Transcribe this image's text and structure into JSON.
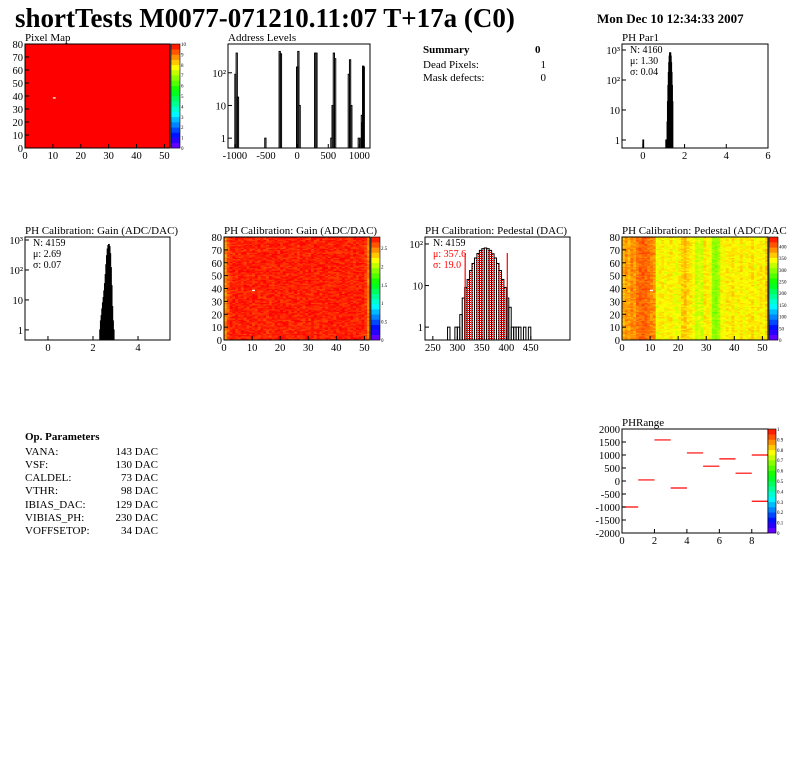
{
  "header": {
    "title": "shortTests M0077-071210.11:07 T+17a (C0)",
    "date": "Mon Dec 10 12:34:33 2007"
  },
  "summary": {
    "title": "Summary",
    "value": "0",
    "rows": [
      {
        "label": "Dead Pixels:",
        "value": "1"
      },
      {
        "label": "Mask defects:",
        "value": "0"
      }
    ]
  },
  "op_params": {
    "title": "Op. Parameters",
    "rows": [
      {
        "label": "VANA:",
        "value": "143 DAC"
      },
      {
        "label": "VSF:",
        "value": "130 DAC"
      },
      {
        "label": "CALDEL:",
        "value": "73 DAC"
      },
      {
        "label": "VTHR:",
        "value": "98 DAC"
      },
      {
        "label": "IBIAS_DAC:",
        "value": "129 DAC"
      },
      {
        "label": "VIBIAS_PH:",
        "value": "230 DAC"
      },
      {
        "label": "VOFFSETOP:",
        "value": "34 DAC"
      }
    ]
  },
  "colors": {
    "hist_line": "#000000",
    "stats_highlight": "#ff0000",
    "fit_fill": "#ff0000",
    "range_line": "#ff0000"
  },
  "chart_data": [
    {
      "id": "pixel_map",
      "type": "heatmap",
      "title": "Pixel Map",
      "xlim": [
        0,
        52
      ],
      "ylim": [
        0,
        80
      ],
      "zlim": [
        0,
        10
      ],
      "xticks": [
        0,
        10,
        20,
        30,
        40,
        50
      ],
      "yticks": [
        0,
        10,
        20,
        30,
        40,
        50,
        60,
        70,
        80
      ],
      "zticks": [
        0,
        1,
        2,
        3,
        4,
        5,
        6,
        7,
        8,
        9,
        10
      ],
      "fill_value": 10,
      "cells": [
        {
          "x": 10,
          "y": 38,
          "z": 0
        }
      ]
    },
    {
      "id": "address_levels",
      "type": "bar",
      "title": "Address Levels",
      "xlim": [
        -1110,
        1170
      ],
      "ylim": [
        0.5,
        760
      ],
      "log_y": true,
      "xticks": [
        -1000,
        -500,
        0,
        500,
        1000
      ],
      "yticks": [
        {
          "v": 1,
          "label": "1"
        },
        {
          "v": 10,
          "label": "10"
        },
        {
          "v": 100,
          "label": "10²"
        }
      ],
      "bin_width": 20,
      "bins": [
        [
          -1000,
          90
        ],
        [
          -980,
          400
        ],
        [
          -960,
          18
        ],
        [
          -520,
          1
        ],
        [
          -290,
          450
        ],
        [
          -270,
          380
        ],
        [
          -10,
          150
        ],
        [
          10,
          450
        ],
        [
          30,
          10
        ],
        [
          280,
          400
        ],
        [
          300,
          400
        ],
        [
          540,
          1
        ],
        [
          560,
          10
        ],
        [
          580,
          400
        ],
        [
          600,
          270
        ],
        [
          820,
          90
        ],
        [
          840,
          250
        ],
        [
          860,
          10
        ],
        [
          980,
          1
        ],
        [
          1020,
          1
        ],
        [
          1030,
          5
        ],
        [
          1040,
          3
        ],
        [
          1050,
          160
        ],
        [
          1060,
          150
        ]
      ]
    },
    {
      "id": "ph_par1",
      "type": "bar",
      "title": "PH Par1",
      "xlim": [
        -1,
        6
      ],
      "ylim": [
        0.54,
        1585
      ],
      "log_y": true,
      "xticks": [
        0,
        2,
        4,
        6
      ],
      "yticks": [
        {
          "v": 1,
          "label": "1"
        },
        {
          "v": 10,
          "label": "10"
        },
        {
          "v": 100,
          "label": "10²"
        },
        {
          "v": 1000,
          "label": "10³"
        }
      ],
      "stats": {
        "n": "N: 4160",
        "mean": "μ: 1.30",
        "sigma": "σ: 0.04"
      },
      "bin_width": 0.02,
      "bins": [
        [
          0,
          1
        ],
        [
          1.1,
          1
        ],
        [
          1.12,
          1
        ],
        [
          1.14,
          1
        ],
        [
          1.16,
          4
        ],
        [
          1.18,
          19
        ],
        [
          1.2,
          66
        ],
        [
          1.22,
          179
        ],
        [
          1.24,
          380
        ],
        [
          1.26,
          626
        ],
        [
          1.28,
          804
        ],
        [
          1.3,
          804
        ],
        [
          1.32,
          626
        ],
        [
          1.34,
          380
        ],
        [
          1.36,
          179
        ],
        [
          1.38,
          66
        ],
        [
          1.4,
          19
        ]
      ]
    },
    {
      "id": "gain_hist",
      "type": "bar",
      "title": "PH Calibration: Gain (ADC/DAC)",
      "xlim": [
        -1.02,
        5.42
      ],
      "ylim": [
        0.46,
        1260
      ],
      "log_y": true,
      "xticks": [
        0,
        2,
        4
      ],
      "yticks": [
        {
          "v": 1,
          "label": "1"
        },
        {
          "v": 10,
          "label": "10"
        },
        {
          "v": 100,
          "label": "10²"
        },
        {
          "v": 1000,
          "label": "10³"
        }
      ],
      "stats": {
        "n": "N: 4159",
        "mean": "μ: 2.69",
        "sigma": "σ: 0.07"
      },
      "bin_width": 0.03,
      "bins": [
        [
          2.3,
          1
        ],
        [
          2.33,
          2
        ],
        [
          2.36,
          3
        ],
        [
          2.39,
          5
        ],
        [
          2.42,
          8
        ],
        [
          2.45,
          12
        ],
        [
          2.48,
          20
        ],
        [
          2.51,
          35
        ],
        [
          2.54,
          70
        ],
        [
          2.57,
          150
        ],
        [
          2.6,
          300
        ],
        [
          2.63,
          500
        ],
        [
          2.66,
          650
        ],
        [
          2.69,
          711
        ],
        [
          2.72,
          600
        ],
        [
          2.75,
          350
        ],
        [
          2.78,
          120
        ],
        [
          2.81,
          30
        ],
        [
          2.84,
          6
        ],
        [
          2.87,
          2
        ],
        [
          2.9,
          1
        ]
      ]
    },
    {
      "id": "gain_map",
      "type": "heatmap",
      "title": "PH Calibration: Gain (ADC/DAC)",
      "xlim": [
        0,
        52
      ],
      "ylim": [
        0,
        80
      ],
      "zlim": [
        0,
        2.8
      ],
      "xticks": [
        0,
        10,
        20,
        30,
        40,
        50
      ],
      "yticks": [
        0,
        10,
        20,
        30,
        40,
        50,
        60,
        70,
        80
      ],
      "zticks": [
        0,
        0.5,
        1,
        1.5,
        2,
        2.5
      ],
      "column_means": [
        2.45,
        2.62,
        2.72,
        2.72,
        2.72,
        2.72,
        2.72,
        2.72,
        2.72,
        2.72,
        2.72,
        2.72,
        2.72,
        2.72,
        2.72,
        2.72,
        2.72,
        2.73,
        2.73,
        2.73,
        2.73,
        2.72,
        2.72,
        2.72,
        2.72,
        2.72,
        2.72,
        2.72,
        2.72,
        2.72,
        2.72,
        2.72,
        2.72,
        2.72,
        2.72,
        2.72,
        2.72,
        2.72,
        2.72,
        2.72,
        2.72,
        2.72,
        2.73,
        2.73,
        2.72,
        2.72,
        2.72,
        2.72,
        2.72,
        2.72,
        2.65,
        2.48
      ],
      "cells": [
        {
          "x": 10,
          "y": 38,
          "z": 0
        }
      ]
    },
    {
      "id": "pedestal_hist",
      "type": "bar",
      "title": "PH Calibration: Pedestal (DAC)",
      "xlim": [
        234,
        530
      ],
      "ylim": [
        0.49,
        147
      ],
      "log_y": true,
      "xticks": [
        250,
        300,
        350,
        400,
        450
      ],
      "yticks": [
        {
          "v": 1,
          "label": "1"
        },
        {
          "v": 10,
          "label": "10"
        },
        {
          "v": 100,
          "label": "10²"
        }
      ],
      "stats": {
        "n": "N: 4159",
        "mean": "μ: 357.6",
        "sigma": "σ: 19.0"
      },
      "fit_range": [
        316,
        402
      ],
      "bin_width": 5,
      "bins": [
        [
          280,
          1
        ],
        [
          295,
          1
        ],
        [
          300,
          1
        ],
        [
          305,
          2
        ],
        [
          310,
          5
        ],
        [
          315,
          9
        ],
        [
          320,
          14
        ],
        [
          325,
          23
        ],
        [
          330,
          34
        ],
        [
          335,
          46
        ],
        [
          340,
          59
        ],
        [
          345,
          70
        ],
        [
          350,
          77
        ],
        [
          355,
          80
        ],
        [
          360,
          77
        ],
        [
          365,
          70
        ],
        [
          370,
          58
        ],
        [
          375,
          46
        ],
        [
          380,
          34
        ],
        [
          385,
          23
        ],
        [
          390,
          14
        ],
        [
          395,
          9
        ],
        [
          400,
          5
        ],
        [
          405,
          3
        ],
        [
          410,
          1
        ],
        [
          415,
          1
        ],
        [
          420,
          1
        ],
        [
          425,
          1
        ],
        [
          435,
          1
        ],
        [
          445,
          1
        ]
      ]
    },
    {
      "id": "pedestal_map",
      "type": "heatmap",
      "title": "PH Calibration: Pedestal (ADC/DAC",
      "xlim": [
        0,
        52
      ],
      "ylim": [
        0,
        80
      ],
      "zlim": [
        0,
        440
      ],
      "xticks": [
        0,
        10,
        20,
        30,
        40,
        50
      ],
      "yticks": [
        0,
        10,
        20,
        30,
        40,
        50,
        60,
        70,
        80
      ],
      "zticks": [
        0,
        50,
        100,
        150,
        200,
        250,
        300,
        350,
        400
      ],
      "column_means": [
        370,
        385,
        375,
        390,
        380,
        395,
        400,
        405,
        400,
        395,
        390,
        385,
        335,
        345,
        350,
        340,
        345,
        350,
        340,
        335,
        345,
        360,
        365,
        355,
        350,
        340,
        320,
        330,
        325,
        350,
        345,
        340,
        300,
        295,
        310,
        345,
        340,
        350,
        345,
        355,
        340,
        345,
        350,
        340,
        345,
        350,
        355,
        340,
        345,
        350,
        345,
        360
      ],
      "cells": [
        {
          "x": 10,
          "y": 38,
          "z": 0
        }
      ]
    },
    {
      "id": "ph_range",
      "type": "line",
      "title": "PHRange",
      "xlim": [
        0,
        9
      ],
      "ylim": [
        -2000,
        2000
      ],
      "xticks": [
        0,
        2,
        4,
        6,
        8
      ],
      "yticks": [
        -2000,
        -1500,
        -1000,
        -500,
        0,
        500,
        1000,
        1500,
        2000
      ],
      "zticks": [
        0,
        0.1,
        0.2,
        0.3,
        0.4,
        0.5,
        0.6,
        0.7,
        0.8,
        0.9,
        1
      ],
      "zlim": [
        0,
        1
      ],
      "segments": [
        [
          0,
          1,
          -1000
        ],
        [
          1,
          2,
          40
        ],
        [
          2,
          3,
          1580
        ],
        [
          3,
          4,
          -270
        ],
        [
          4,
          5,
          1080
        ],
        [
          5,
          6,
          570
        ],
        [
          6,
          7,
          850
        ],
        [
          7,
          8,
          300
        ],
        [
          8,
          9,
          1000
        ],
        [
          8,
          9,
          -780
        ]
      ]
    }
  ]
}
